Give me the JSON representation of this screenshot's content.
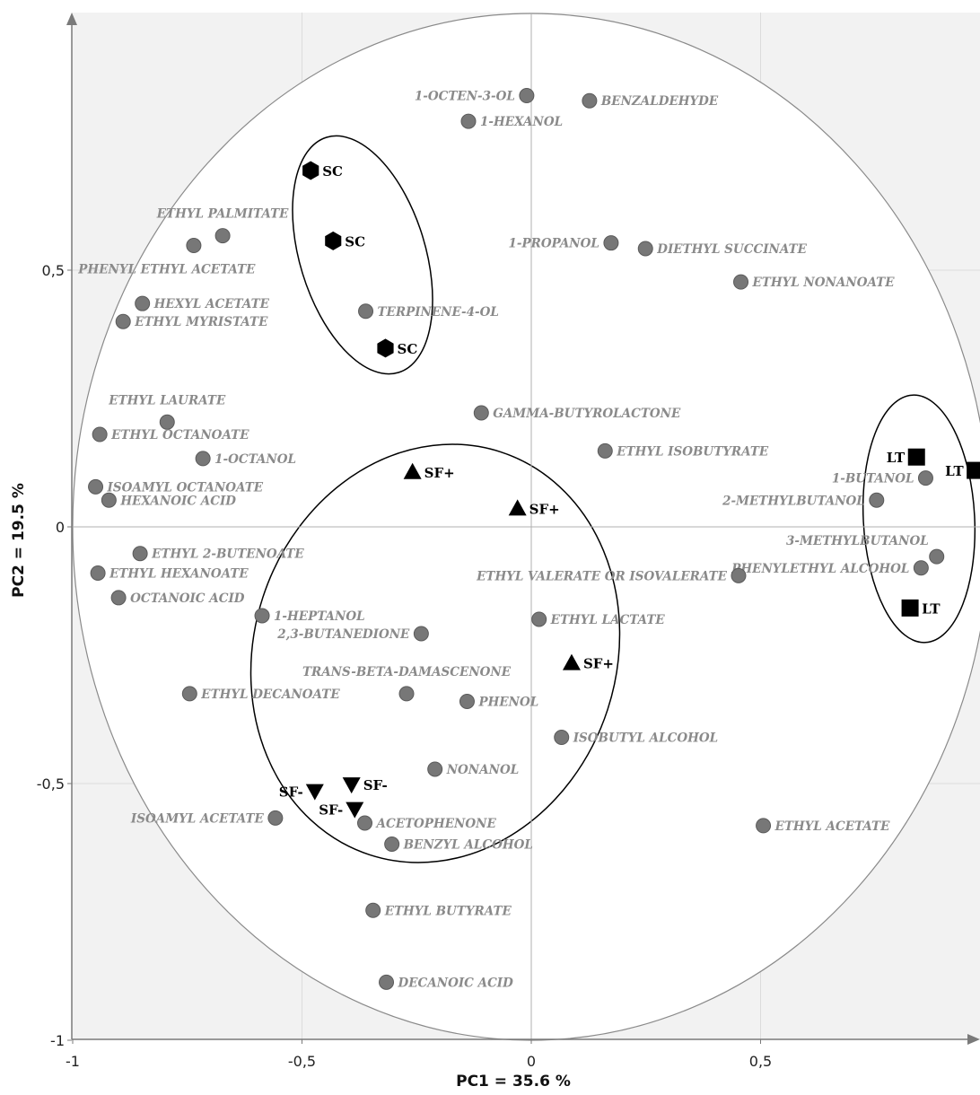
{
  "chart_data": {
    "type": "scatter",
    "title": "",
    "xlabel": "PC1 = 35.6 %",
    "ylabel": "PC2 = 19.5 %",
    "xlim": [
      -1,
      1
    ],
    "ylim": [
      -1,
      1
    ],
    "grid": true,
    "x_ticks": [
      {
        "value": -1,
        "label": "-1"
      },
      {
        "value": -0.5,
        "label": "-0,5"
      },
      {
        "value": 0,
        "label": "0"
      },
      {
        "value": 0.5,
        "label": "0,5"
      }
    ],
    "y_ticks": [
      {
        "value": -1,
        "label": "-1"
      },
      {
        "value": -0.5,
        "label": "-0,5"
      },
      {
        "value": 0,
        "label": "0"
      },
      {
        "value": 0.5,
        "label": "0,5"
      }
    ],
    "colors": {
      "variable_point": "#777777",
      "variable_label": "#8a8a8a",
      "sample_marker": "#000000",
      "grid": "#dcdcdc",
      "background": "#f2f2f2"
    },
    "variables": [
      {
        "label": "1-OCTEN-3-OL",
        "x": -0.01,
        "y": 0.84,
        "side": "left"
      },
      {
        "label": "BENZALDEHYDE",
        "x": 0.127,
        "y": 0.83,
        "side": "right"
      },
      {
        "label": "1-HEXANOL",
        "x": -0.137,
        "y": 0.79,
        "side": "right"
      },
      {
        "label": "ETHYL PALMITATE",
        "x": -0.673,
        "y": 0.567,
        "side": "above"
      },
      {
        "label": "PHENYL ETHYL ACETATE",
        "x": -0.736,
        "y": 0.548,
        "side": "below"
      },
      {
        "label": "1-PROPANOL",
        "x": 0.174,
        "y": 0.553,
        "side": "left"
      },
      {
        "label": "DIETHYL SUCCINATE",
        "x": 0.249,
        "y": 0.542,
        "side": "right"
      },
      {
        "label": "ETHYL NONANOATE",
        "x": 0.457,
        "y": 0.477,
        "side": "right"
      },
      {
        "label": "HEXYL ACETATE",
        "x": -0.848,
        "y": 0.435,
        "side": "right"
      },
      {
        "label": "TERPINENE-4-OL",
        "x": -0.361,
        "y": 0.42,
        "side": "right"
      },
      {
        "label": "ETHYL MYRISTATE",
        "x": -0.89,
        "y": 0.4,
        "side": "right"
      },
      {
        "label": "GAMMA-BUTYROLACTONE",
        "x": -0.109,
        "y": 0.222,
        "side": "right"
      },
      {
        "label": "ETHYL LAURATE",
        "x": -0.794,
        "y": 0.204,
        "side": "above"
      },
      {
        "label": "ETHYL OCTANOATE",
        "x": -0.941,
        "y": 0.18,
        "side": "right"
      },
      {
        "label": "ETHYL ISOBUTYRATE",
        "x": 0.161,
        "y": 0.148,
        "side": "right"
      },
      {
        "label": "1-OCTANOL",
        "x": -0.716,
        "y": 0.133,
        "side": "right"
      },
      {
        "label": "ISOAMYL OCTANOATE",
        "x": -0.95,
        "y": 0.078,
        "side": "right"
      },
      {
        "label": "1-BUTANOL",
        "x": 0.86,
        "y": 0.095,
        "side": "left"
      },
      {
        "label": "HEXANOIC ACID",
        "x": -0.921,
        "y": 0.052,
        "side": "right"
      },
      {
        "label": "2-METHYLBUTANOL",
        "x": 0.753,
        "y": 0.052,
        "side": "left"
      },
      {
        "label": "ETHYL 2-BUTENOATE",
        "x": -0.853,
        "y": -0.052,
        "side": "right"
      },
      {
        "label": "3-METHYLBUTANOL",
        "x": 0.884,
        "y": -0.058,
        "side": "above-left"
      },
      {
        "label": "ETHYL HEXANOATE",
        "x": -0.945,
        "y": -0.09,
        "side": "right"
      },
      {
        "label": "PHENYLETHYL ALCOHOL",
        "x": 0.85,
        "y": -0.08,
        "side": "left"
      },
      {
        "label": "ETHYL VALERATE OR ISOVALERATE",
        "x": 0.452,
        "y": -0.095,
        "side": "left"
      },
      {
        "label": "OCTANOIC ACID",
        "x": -0.9,
        "y": -0.138,
        "side": "right"
      },
      {
        "label": "1-HEPTANOL",
        "x": -0.587,
        "y": -0.173,
        "side": "right"
      },
      {
        "label": "ETHYL LACTATE",
        "x": 0.017,
        "y": -0.18,
        "side": "right"
      },
      {
        "label": "2,3-BUTANEDIONE",
        "x": -0.24,
        "y": -0.208,
        "side": "left"
      },
      {
        "label": "TRANS-BETA-DAMASCENONE",
        "x": -0.272,
        "y": -0.325,
        "side": "above"
      },
      {
        "label": "ETHYL DECANOATE",
        "x": -0.745,
        "y": -0.325,
        "side": "right"
      },
      {
        "label": "PHENOL",
        "x": -0.14,
        "y": -0.34,
        "side": "right"
      },
      {
        "label": "ISOBUTYL ALCOHOL",
        "x": 0.066,
        "y": -0.41,
        "side": "right"
      },
      {
        "label": "NONANOL",
        "x": -0.21,
        "y": -0.472,
        "side": "right"
      },
      {
        "label": "ISOAMYL ACETATE",
        "x": -0.558,
        "y": -0.567,
        "side": "left"
      },
      {
        "label": "ACETOPHENONE",
        "x": -0.363,
        "y": -0.577,
        "side": "right"
      },
      {
        "label": "ETHYL ACETATE",
        "x": 0.506,
        "y": -0.582,
        "side": "right"
      },
      {
        "label": "BENZYL ALCOHOL",
        "x": -0.304,
        "y": -0.618,
        "side": "right"
      },
      {
        "label": "ETHYL BUTYRATE",
        "x": -0.345,
        "y": -0.747,
        "side": "right"
      },
      {
        "label": "DECANOIC ACID",
        "x": -0.316,
        "y": -0.887,
        "side": "right"
      }
    ],
    "samples": [
      {
        "label": "SC",
        "marker": "hexagon",
        "x": -0.481,
        "y": 0.694
      },
      {
        "label": "SC",
        "marker": "hexagon",
        "x": -0.432,
        "y": 0.557
      },
      {
        "label": "SC",
        "marker": "hexagon",
        "x": -0.318,
        "y": 0.348
      },
      {
        "label": "SF+",
        "marker": "triangle-up",
        "x": -0.259,
        "y": 0.107
      },
      {
        "label": "SF+",
        "marker": "triangle-up",
        "x": -0.03,
        "y": 0.036
      },
      {
        "label": "SF+",
        "marker": "triangle-up",
        "x": 0.088,
        "y": -0.265
      },
      {
        "label": "SF-",
        "marker": "triangle-down",
        "x": -0.472,
        "y": -0.515
      },
      {
        "label": "SF-",
        "marker": "triangle-down",
        "x": -0.392,
        "y": -0.502
      },
      {
        "label": "SF-",
        "marker": "triangle-down",
        "x": -0.385,
        "y": -0.55
      },
      {
        "label": "LT",
        "marker": "square",
        "x": 0.84,
        "y": 0.136
      },
      {
        "label": "LT",
        "marker": "square",
        "x": 0.968,
        "y": 0.11
      },
      {
        "label": "LT",
        "marker": "square",
        "x": 0.826,
        "y": -0.158
      }
    ]
  }
}
